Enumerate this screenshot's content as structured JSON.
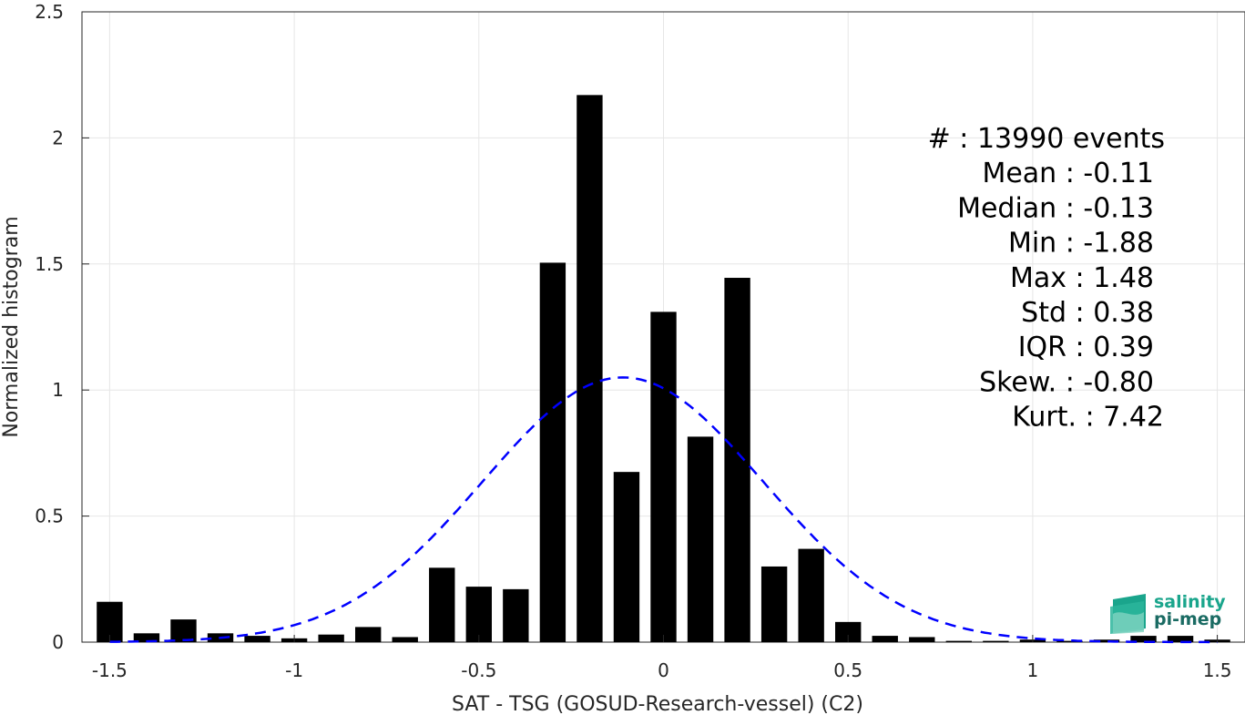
{
  "chart_data": {
    "type": "bar",
    "xlabel": "SAT - TSG (GOSUD-Research-vessel) (C2)",
    "ylabel": "Normalized histogram",
    "xlim": [
      -1.575,
      1.575
    ],
    "ylim": [
      0,
      2.5
    ],
    "x_ticks": [
      -1.5,
      -1,
      -0.5,
      0,
      0.5,
      1,
      1.5
    ],
    "x_tick_labels": [
      "-1.5",
      "-1",
      "-0.5",
      "0",
      "0.5",
      "1",
      "1.5"
    ],
    "y_ticks": [
      0,
      0.5,
      1,
      1.5,
      2,
      2.5
    ],
    "y_tick_labels": [
      "0",
      "0.5",
      "1",
      "1.5",
      "2",
      "2.5"
    ],
    "grid": true,
    "bar_width": 0.07,
    "bar_color": "#000000",
    "bars": {
      "x": [
        -1.5,
        -1.4,
        -1.3,
        -1.2,
        -1.1,
        -1.0,
        -0.9,
        -0.8,
        -0.7,
        -0.6,
        -0.5,
        -0.4,
        -0.3,
        -0.2,
        -0.1,
        0.0,
        0.1,
        0.2,
        0.3,
        0.4,
        0.5,
        0.6,
        0.7,
        0.8,
        0.9,
        1.0,
        1.1,
        1.2,
        1.3,
        1.4,
        1.5
      ],
      "values": [
        0.16,
        0.035,
        0.09,
        0.035,
        0.025,
        0.015,
        0.03,
        0.06,
        0.02,
        0.295,
        0.22,
        0.21,
        1.505,
        2.17,
        0.675,
        1.31,
        0.815,
        1.445,
        0.3,
        0.37,
        0.08,
        0.025,
        0.02,
        0.005,
        0.005,
        0.01,
        0.005,
        0.01,
        0.025,
        0.025,
        0.01
      ]
    },
    "fit_curve": {
      "type": "normal",
      "mean": -0.11,
      "std": 0.38,
      "color": "#0000ff",
      "style": "dashed"
    },
    "annotations": [
      "#  : 13990 events",
      "Mean : -0.11",
      "Median : -0.13",
      "Min : -1.88",
      "Max : 1.48",
      "Std : 0.38",
      "IQR : 0.39",
      "Skew. : -0.80",
      "Kurt. : 7.42"
    ]
  },
  "logo": {
    "line1": "salinity",
    "line2": "pi-mep"
  }
}
